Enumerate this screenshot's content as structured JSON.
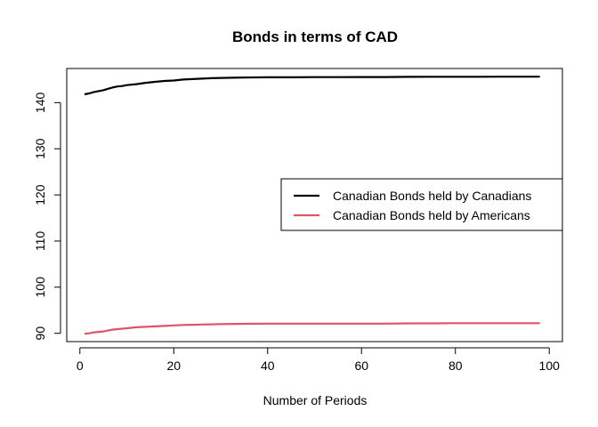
{
  "chart_data": {
    "type": "line",
    "title": "Bonds in terms of CAD",
    "xlabel": "Number of Periods",
    "ylabel": "",
    "xlim": [
      -2.8,
      102.8
    ],
    "ylim": [
      88.2,
      147.4
    ],
    "xticks": [
      0,
      20,
      40,
      60,
      80,
      100
    ],
    "yticks": [
      90,
      100,
      110,
      120,
      130,
      140
    ],
    "grid": false,
    "legend_position": "right",
    "series": [
      {
        "name": "Canadian Bonds held by Canadians",
        "color": "#000000",
        "x": [
          1,
          2,
          3,
          4,
          5,
          6,
          7,
          8,
          9,
          10,
          12,
          14,
          16,
          18,
          20,
          22,
          24,
          26,
          28,
          30,
          35,
          40,
          45,
          50,
          55,
          60,
          65,
          70,
          75,
          80,
          85,
          90,
          95,
          98
        ],
        "y": [
          141.8,
          142.0,
          142.3,
          142.5,
          142.7,
          143.0,
          143.3,
          143.5,
          143.6,
          143.8,
          144.0,
          144.3,
          144.5,
          144.7,
          144.8,
          145.0,
          145.1,
          145.2,
          145.3,
          145.35,
          145.45,
          145.5,
          145.5,
          145.52,
          145.52,
          145.55,
          145.55,
          145.58,
          145.6,
          145.6,
          145.6,
          145.62,
          145.62,
          145.62
        ]
      },
      {
        "name": "Canadian Bonds held by Americans",
        "color": "#DF536B",
        "x": [
          1,
          2,
          3,
          4,
          5,
          6,
          7,
          8,
          9,
          10,
          12,
          14,
          16,
          18,
          20,
          22,
          24,
          26,
          28,
          30,
          35,
          40,
          45,
          50,
          55,
          60,
          65,
          70,
          75,
          80,
          85,
          90,
          95,
          98
        ],
        "y": [
          89.9,
          90.0,
          90.2,
          90.3,
          90.4,
          90.6,
          90.8,
          90.9,
          91.0,
          91.1,
          91.3,
          91.4,
          91.5,
          91.6,
          91.7,
          91.8,
          91.85,
          91.9,
          91.95,
          92.0,
          92.05,
          92.1,
          92.1,
          92.1,
          92.1,
          92.1,
          92.1,
          92.15,
          92.15,
          92.2,
          92.2,
          92.2,
          92.2,
          92.2
        ]
      }
    ]
  }
}
